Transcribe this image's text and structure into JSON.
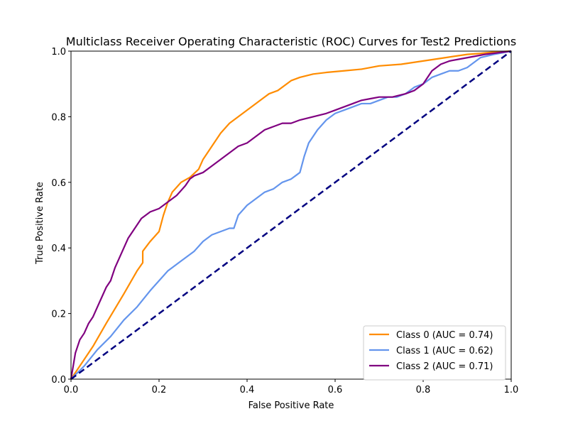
{
  "chart_data": {
    "type": "line",
    "title": "Multiclass Receiver Operating Characteristic (ROC) Curves for Test2 Predictions",
    "xlabel": "False Positive Rate",
    "ylabel": "True Positive Rate",
    "xlim": [
      0.0,
      1.0
    ],
    "ylim": [
      0.0,
      1.0
    ],
    "x_ticks": [
      "0.0",
      "0.2",
      "0.4",
      "0.6",
      "0.8",
      "1.0"
    ],
    "y_ticks": [
      "0.0",
      "0.2",
      "0.4",
      "0.6",
      "0.8",
      "1.0"
    ],
    "grid": false,
    "legend_position": "lower right",
    "series": [
      {
        "name": "Class 0 (AUC = 0.74)",
        "color": "#ff8c00",
        "x": [
          0.0,
          0.02,
          0.05,
          0.08,
          0.12,
          0.15,
          0.163,
          0.163,
          0.18,
          0.2,
          0.21,
          0.22,
          0.23,
          0.25,
          0.27,
          0.29,
          0.3,
          0.32,
          0.34,
          0.36,
          0.38,
          0.4,
          0.42,
          0.44,
          0.45,
          0.47,
          0.5,
          0.52,
          0.55,
          0.58,
          0.62,
          0.66,
          0.7,
          0.75,
          0.8,
          0.85,
          0.9,
          0.93,
          0.96,
          1.0
        ],
        "y": [
          0.0,
          0.04,
          0.1,
          0.17,
          0.26,
          0.33,
          0.355,
          0.39,
          0.42,
          0.45,
          0.5,
          0.54,
          0.57,
          0.6,
          0.615,
          0.64,
          0.67,
          0.71,
          0.75,
          0.78,
          0.8,
          0.82,
          0.84,
          0.86,
          0.87,
          0.88,
          0.91,
          0.92,
          0.93,
          0.935,
          0.94,
          0.945,
          0.955,
          0.96,
          0.97,
          0.98,
          0.99,
          0.993,
          0.997,
          1.0
        ]
      },
      {
        "name": "Class 1 (AUC = 0.62)",
        "color": "#6495ed",
        "x": [
          0.0,
          0.03,
          0.06,
          0.09,
          0.12,
          0.15,
          0.18,
          0.2,
          0.22,
          0.25,
          0.28,
          0.3,
          0.32,
          0.34,
          0.36,
          0.37,
          0.38,
          0.4,
          0.42,
          0.44,
          0.46,
          0.48,
          0.5,
          0.51,
          0.52,
          0.53,
          0.54,
          0.55,
          0.56,
          0.58,
          0.6,
          0.62,
          0.64,
          0.66,
          0.68,
          0.7,
          0.72,
          0.74,
          0.76,
          0.78,
          0.8,
          0.82,
          0.84,
          0.86,
          0.88,
          0.9,
          0.93,
          0.96,
          1.0
        ],
        "y": [
          0.0,
          0.04,
          0.09,
          0.13,
          0.18,
          0.22,
          0.27,
          0.3,
          0.33,
          0.36,
          0.39,
          0.42,
          0.44,
          0.45,
          0.46,
          0.46,
          0.5,
          0.53,
          0.55,
          0.57,
          0.58,
          0.6,
          0.61,
          0.62,
          0.63,
          0.68,
          0.72,
          0.74,
          0.76,
          0.79,
          0.81,
          0.82,
          0.83,
          0.84,
          0.84,
          0.85,
          0.86,
          0.86,
          0.87,
          0.89,
          0.9,
          0.92,
          0.93,
          0.94,
          0.94,
          0.95,
          0.98,
          0.99,
          1.0
        ]
      },
      {
        "name": "Class 2 (AUC = 0.71)",
        "color": "#800080",
        "x": [
          0.0,
          0.01,
          0.02,
          0.03,
          0.04,
          0.05,
          0.06,
          0.07,
          0.08,
          0.09,
          0.1,
          0.11,
          0.12,
          0.13,
          0.14,
          0.15,
          0.16,
          0.18,
          0.2,
          0.21,
          0.22,
          0.24,
          0.26,
          0.27,
          0.28,
          0.3,
          0.32,
          0.34,
          0.36,
          0.38,
          0.4,
          0.42,
          0.44,
          0.46,
          0.48,
          0.5,
          0.52,
          0.55,
          0.58,
          0.6,
          0.62,
          0.64,
          0.66,
          0.68,
          0.7,
          0.73,
          0.76,
          0.78,
          0.8,
          0.82,
          0.84,
          0.86,
          0.9,
          0.94,
          1.0
        ],
        "y": [
          0.0,
          0.08,
          0.12,
          0.14,
          0.17,
          0.19,
          0.22,
          0.25,
          0.28,
          0.3,
          0.34,
          0.37,
          0.4,
          0.43,
          0.45,
          0.47,
          0.49,
          0.51,
          0.52,
          0.53,
          0.54,
          0.56,
          0.59,
          0.61,
          0.62,
          0.63,
          0.65,
          0.67,
          0.69,
          0.71,
          0.72,
          0.74,
          0.76,
          0.77,
          0.78,
          0.78,
          0.79,
          0.8,
          0.81,
          0.82,
          0.83,
          0.84,
          0.85,
          0.855,
          0.86,
          0.86,
          0.87,
          0.88,
          0.9,
          0.94,
          0.96,
          0.97,
          0.98,
          0.99,
          1.0
        ]
      },
      {
        "name": "",
        "color": "#000080",
        "dashed": true,
        "x": [
          0.0,
          1.0
        ],
        "y": [
          0.0,
          1.0
        ]
      }
    ]
  }
}
